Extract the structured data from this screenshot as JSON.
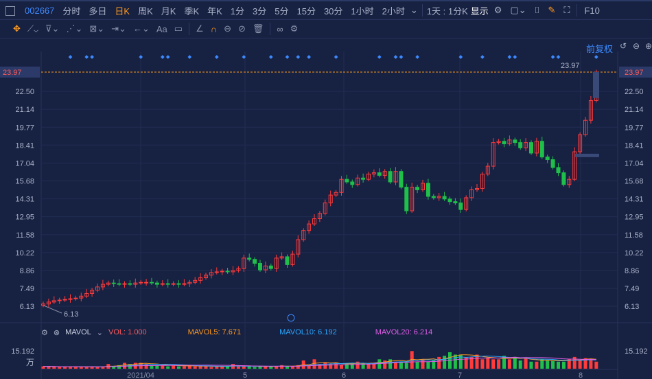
{
  "toolbar": {
    "code": "002667",
    "periods": [
      "分时",
      "多日",
      "日K",
      "周K",
      "月K",
      "季K",
      "年K",
      "1分",
      "3分",
      "5分",
      "15分",
      "30分",
      "1小时",
      "2小时"
    ],
    "active_period": "日K",
    "interval": "1天 : 1分K",
    "display": "显示",
    "f10": "F10"
  },
  "drawing_tools": {
    "text_tool": "Aa"
  },
  "chart": {
    "adjust_label": "前复权",
    "current_price": "23.97",
    "high_label": "23.97",
    "low_label": "6.13",
    "price_ticks": [
      "22.50",
      "21.14",
      "19.77",
      "18.41",
      "17.04",
      "15.68",
      "14.31",
      "12.95",
      "11.58",
      "10.22",
      "8.86",
      "7.49",
      "6.13"
    ],
    "date_ticks": [
      "2021/04",
      "5",
      "6",
      "7",
      "8"
    ],
    "colors": {
      "up": "#ff3b3b",
      "down": "#1fbf4a",
      "accent": "#ff9a1f",
      "link": "#3d8bff"
    }
  },
  "chart_data": {
    "type": "candlestick",
    "ylim": [
      6.13,
      23.97
    ],
    "open": [
      6.2,
      6.3,
      6.45,
      6.55,
      6.6,
      6.65,
      6.7,
      6.75,
      6.9,
      7.1,
      7.35,
      7.6,
      7.8,
      7.9,
      7.85,
      7.8,
      7.85,
      7.8,
      7.9,
      7.95,
      7.95,
      7.9,
      7.8,
      7.85,
      7.8,
      7.85,
      7.8,
      7.85,
      7.95,
      8.1,
      8.3,
      8.5,
      8.7,
      8.75,
      8.8,
      8.75,
      8.85,
      9.0,
      9.8,
      9.7,
      9.4,
      8.9,
      9.2,
      9.0,
      9.8,
      9.9,
      9.3,
      10.1,
      11.2,
      11.9,
      12.4,
      12.8,
      13.2,
      14.0,
      14.6,
      14.8,
      15.8,
      15.6,
      15.4,
      15.9,
      15.8,
      16.2,
      16.3,
      16.1,
      16.4,
      15.6,
      16.4,
      15.2,
      13.4,
      15.2,
      15.0,
      15.5,
      14.5,
      14.4,
      14.5,
      14.3,
      14.1,
      14.0,
      13.5,
      14.4,
      15.0,
      15.1,
      16.2,
      16.8,
      18.6,
      18.7,
      18.5,
      18.8,
      18.6,
      18.2,
      18.6,
      17.8,
      18.7,
      17.5,
      17.3,
      16.7,
      16.3,
      15.4,
      15.8,
      17.9,
      19.2,
      20.3,
      21.8
    ],
    "close": [
      6.3,
      6.45,
      6.55,
      6.6,
      6.65,
      6.7,
      6.75,
      6.9,
      7.1,
      7.35,
      7.6,
      7.8,
      7.9,
      7.85,
      7.8,
      7.85,
      7.8,
      7.9,
      7.95,
      7.95,
      7.9,
      7.8,
      7.85,
      7.8,
      7.85,
      7.8,
      7.85,
      7.95,
      8.1,
      8.3,
      8.5,
      8.7,
      8.75,
      8.8,
      8.75,
      8.85,
      9.0,
      9.8,
      9.7,
      9.4,
      8.9,
      9.2,
      9.0,
      9.8,
      9.9,
      9.3,
      10.1,
      11.2,
      11.9,
      12.4,
      12.8,
      13.2,
      14.0,
      14.6,
      14.8,
      15.8,
      15.6,
      15.4,
      15.9,
      15.8,
      16.2,
      16.3,
      16.1,
      16.4,
      15.6,
      16.4,
      15.2,
      13.4,
      15.2,
      15.0,
      15.5,
      14.5,
      14.4,
      14.5,
      14.3,
      14.1,
      14.0,
      13.5,
      14.4,
      15.0,
      15.1,
      16.2,
      16.8,
      18.6,
      18.7,
      18.5,
      18.8,
      18.6,
      18.2,
      18.6,
      17.8,
      18.7,
      17.5,
      17.3,
      16.7,
      16.3,
      15.4,
      15.8,
      17.9,
      19.2,
      20.3,
      21.8,
      23.97
    ],
    "marker_indices": [
      5,
      8,
      9,
      18,
      22,
      23,
      27,
      32,
      37,
      42,
      45,
      47,
      49,
      54,
      62,
      65,
      66,
      69,
      77,
      81,
      86,
      87,
      94,
      95,
      102
    ],
    "volume": [
      2,
      2,
      1.5,
      1.5,
      1.5,
      2,
      1.5,
      1.5,
      1.5,
      1.5,
      1.5,
      2,
      4,
      2,
      3,
      5,
      4,
      5,
      5,
      4,
      3,
      3,
      3,
      2,
      3,
      2,
      2,
      3,
      2,
      2,
      2,
      1.5,
      2,
      2,
      2,
      4,
      2,
      2,
      2,
      1.5,
      2,
      2,
      2,
      2,
      3,
      2,
      2,
      3,
      7,
      3,
      8,
      4,
      5,
      4,
      5,
      3,
      4,
      5,
      6,
      4,
      4,
      5,
      8,
      7,
      8,
      6,
      6,
      5,
      15,
      6,
      8,
      6,
      7,
      10,
      11,
      14,
      12,
      12,
      10,
      10,
      12,
      8,
      9,
      8,
      8,
      11,
      8,
      10,
      7,
      9,
      6,
      6,
      8,
      7,
      7,
      6,
      6,
      8,
      10,
      7,
      9,
      8,
      6
    ],
    "mavol": {
      "MAVOL5": "7.671",
      "MAVOL10": "6.192",
      "MAVOL20": "6.214",
      "VOL": "1.000"
    },
    "vol_axis": "15.192",
    "vol_unit": "万"
  },
  "volume_panel": {
    "title": "MAVOL",
    "vol_label": "VOL: 1.000",
    "mavol5_label": "MAVOL5: 7.671",
    "mavol10_label": "MAVOL10: 6.192",
    "mavol20_label": "MAVOL20: 6.214"
  }
}
